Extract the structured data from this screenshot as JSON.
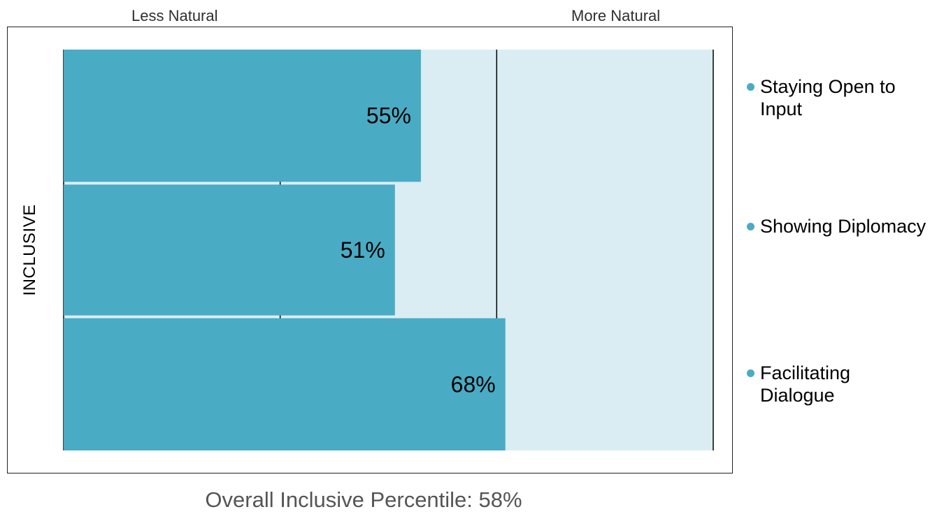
{
  "axis_labels": {
    "left": "Less Natural",
    "right": "More Natural"
  },
  "category_label": "INCLUSIVE",
  "footer": "Overall Inclusive Percentile: 58%",
  "colors": {
    "bar": "#4aabc4",
    "background_band": "#daedf2",
    "divider": "#000000",
    "legend_dot": "#4aabc4"
  },
  "chart_data": {
    "type": "bar",
    "orientation": "horizontal",
    "title": "",
    "xlabel": "",
    "ylabel": "INCLUSIVE",
    "xlim": [
      0,
      100
    ],
    "categories": [
      "Staying Open to Input",
      "Showing Diplomacy",
      "Facilitating Dialogue"
    ],
    "values": [
      55,
      51,
      68
    ],
    "data_labels": [
      "55%",
      "51%",
      "68%"
    ],
    "legend": [
      "Staying Open to Input",
      "Showing Diplomacy",
      "Facilitating Dialogue"
    ],
    "legend_position": "right",
    "grid": true
  }
}
